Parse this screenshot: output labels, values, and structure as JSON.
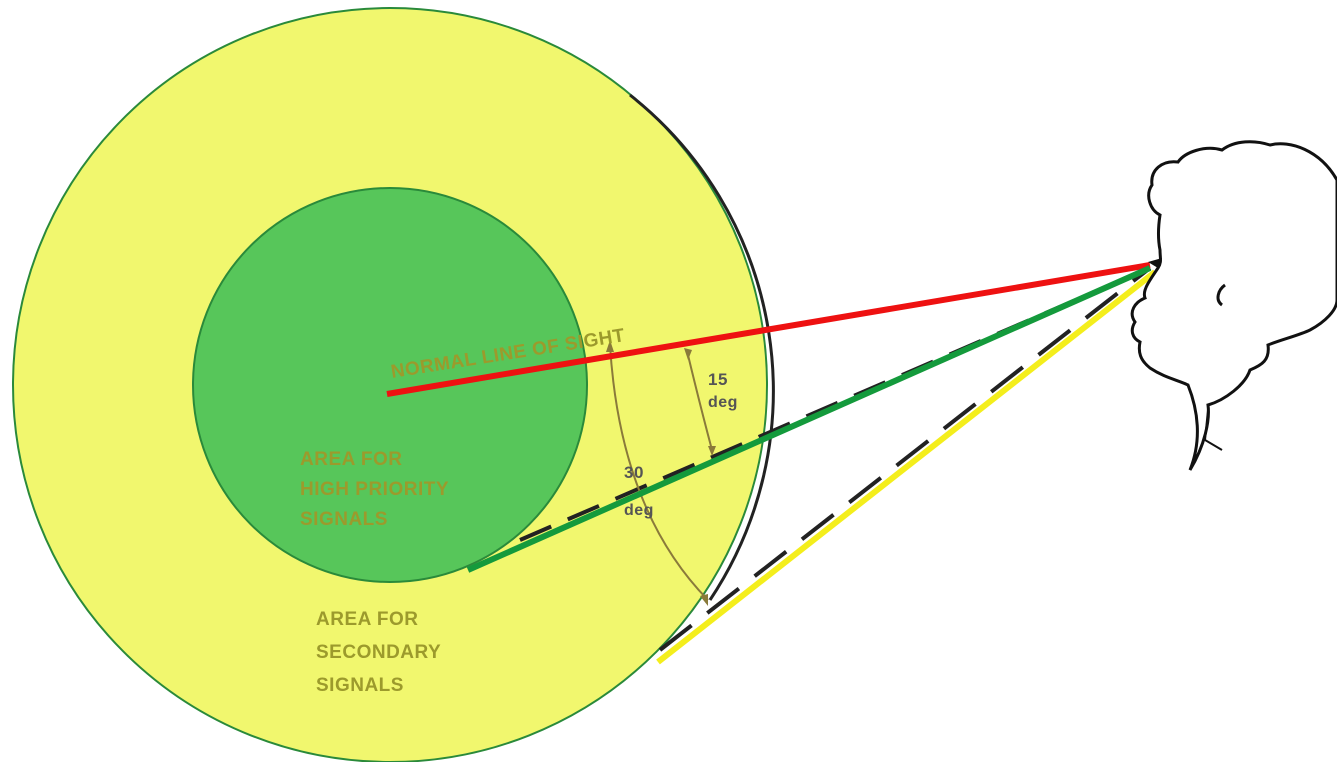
{
  "labels": {
    "line_of_sight": "NORMAL LINE OF SIGHT",
    "angle_15_value": "15",
    "angle_15_unit": "deg",
    "angle_30_value": "30",
    "angle_30_unit": "deg",
    "high_priority": [
      "AREA FOR",
      "HIGH PRIORITY",
      "SIGNALS"
    ],
    "secondary": [
      "AREA FOR",
      "SECONDARY",
      "SIGNALS"
    ]
  },
  "colors": {
    "outer_area": "#f1f76e",
    "inner_area": "#57c65a",
    "normal_line_of_sight": "#ee1111",
    "line_15_deg": "#149a3c",
    "line_30_deg": "#f4ee1c",
    "head_outline": "#111111"
  },
  "angles_deg": [
    15,
    30
  ]
}
